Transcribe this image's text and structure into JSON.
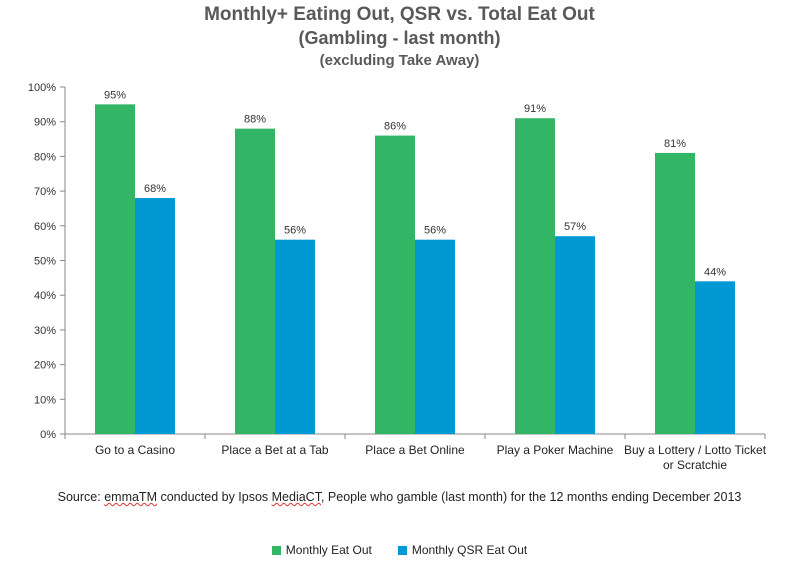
{
  "chart_data": {
    "type": "bar",
    "title": "Monthly+ Eating Out, QSR vs. Total Eat Out",
    "subtitle": "(Gambling - last month)",
    "subtitle2": "(excluding Take Away)",
    "categories": [
      "Go to a Casino",
      "Place a Bet at a Tab",
      "Place a Bet Online",
      "Play a Poker Machine",
      "Buy a Lottery / Lotto Ticket or Scratchie"
    ],
    "category_lines": [
      [
        "Go to a Casino"
      ],
      [
        "Place a Bet at a Tab"
      ],
      [
        "Place a Bet Online"
      ],
      [
        "Play a Poker Machine"
      ],
      [
        "Buy a Lottery / Lotto Ticket",
        "or Scratchie"
      ]
    ],
    "series": [
      {
        "name": "Monthly Eat Out",
        "values": [
          95,
          88,
          86,
          91,
          81
        ],
        "labels": [
          "95%",
          "88%",
          "86%",
          "91%",
          "81%"
        ],
        "color": "#33b566"
      },
      {
        "name": "Monthly QSR Eat Out",
        "values": [
          68,
          56,
          56,
          57,
          44
        ],
        "labels": [
          "68%",
          "56%",
          "56%",
          "57%",
          "44%"
        ],
        "color": "#0099d4"
      }
    ],
    "ylim": [
      0,
      100
    ],
    "yticks": [
      0,
      10,
      20,
      30,
      40,
      50,
      60,
      70,
      80,
      90,
      100
    ],
    "ytick_labels": [
      "0%",
      "10%",
      "20%",
      "30%",
      "40%",
      "50%",
      "60%",
      "70%",
      "80%",
      "90%",
      "100%"
    ],
    "legend_position": "bottom",
    "grid": false
  },
  "source": {
    "prefix": "Source: ",
    "emma": "emmaTM",
    "middle": " conducted by Ipsos ",
    "media": "MediaCT",
    "suffix": ", People who gamble (last month) for the 12 months ending December 2013"
  },
  "colors": {
    "axis": "#888888",
    "title": "#595959"
  }
}
